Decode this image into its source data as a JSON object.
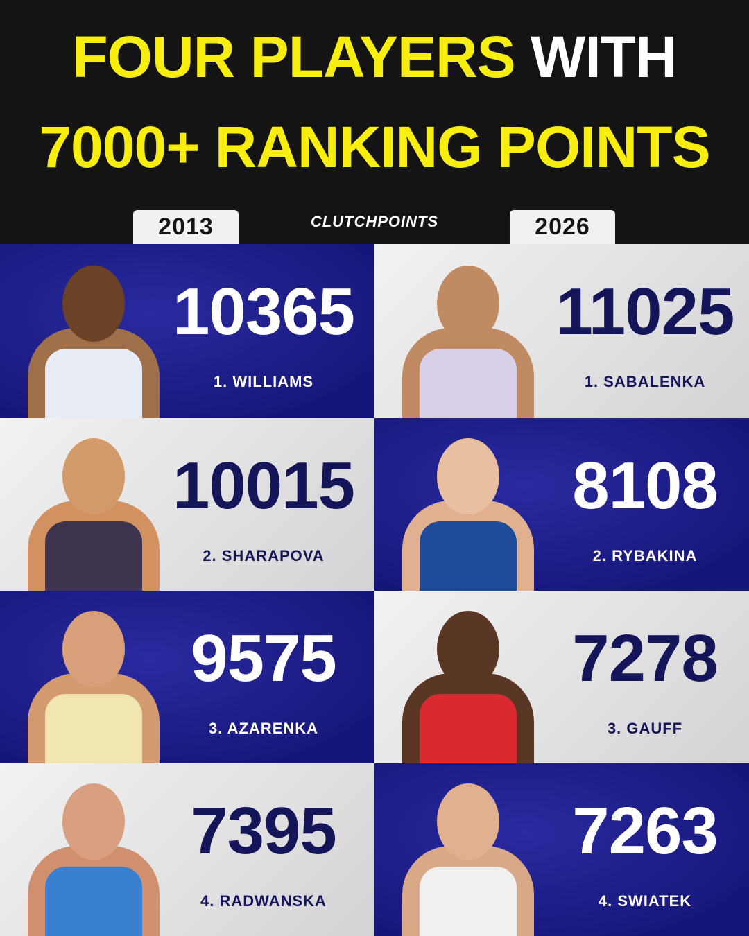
{
  "title": {
    "line1_yellow": "FOUR PLAYERS",
    "line1_white": "WITH",
    "line2": "7000+ RANKING POINTS"
  },
  "years": {
    "left": "2013",
    "right": "2026"
  },
  "logo": "CLUTCHPOINTS",
  "colors": {
    "yellow": "#f7ee10",
    "blue": "#1e1e8c",
    "navy": "#15155a",
    "light": "#ececec"
  },
  "players_2013": [
    {
      "points": "10365",
      "label": "1. WILLIAMS"
    },
    {
      "points": "10015",
      "label": "2. SHARAPOVA"
    },
    {
      "points": "9575",
      "label": "3. AZARENKA"
    },
    {
      "points": "7395",
      "label": "4. RADWANSKA"
    }
  ],
  "players_2026": [
    {
      "points": "11025",
      "label": "1. SABALENKA"
    },
    {
      "points": "8108",
      "label": "2. RYBAKINA"
    },
    {
      "points": "7278",
      "label": "3. GAUFF"
    },
    {
      "points": "7263",
      "label": "4. SWIATEK"
    }
  ]
}
